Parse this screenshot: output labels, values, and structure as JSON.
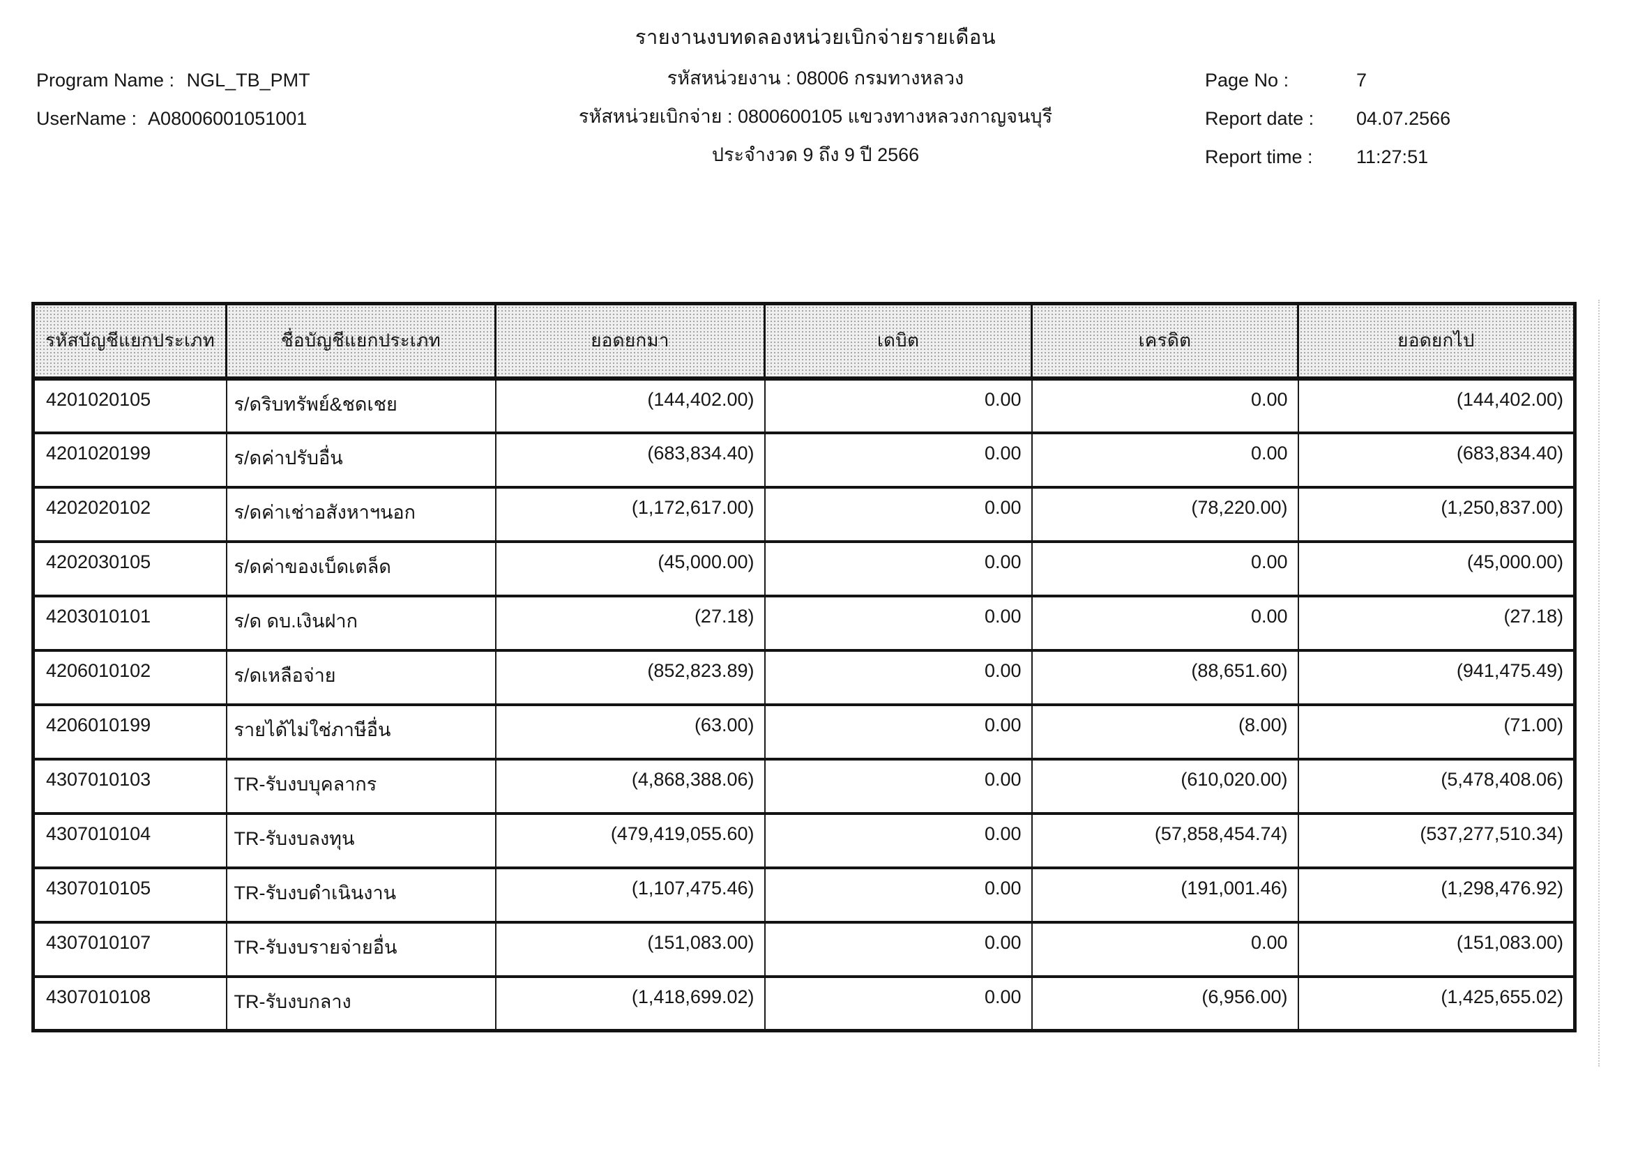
{
  "title": "รายงานงบทดลองหน่วยเบิกจ่ายรายเดือน",
  "meta": {
    "program_name_label": "Program Name :",
    "program_name_value": "NGL_TB_PMT",
    "username_label": "UserName :",
    "username_value": "A08006001051001",
    "agency_line": "รหัสหน่วยงาน : 08006 กรมทางหลวง",
    "disbursement_unit_line": "รหัสหน่วยเบิกจ่าย : 0800600105 แขวงทางหลวงกาญจนบุรี",
    "period_line": "ประจำงวด 9 ถึง 9 ปี 2566",
    "page_no_label": "Page No :",
    "page_no_value": "7",
    "report_date_label": "Report date :",
    "report_date_value": "04.07.2566",
    "report_time_label": "Report time :",
    "report_time_value": "11:27:51"
  },
  "table": {
    "headers": [
      "รหัสบัญชีแยกประเภท",
      "ชื่อบัญชีแยกประเภท",
      "ยอดยกมา",
      "เดบิต",
      "เครดิต",
      "ยอดยกไป"
    ],
    "rows": [
      [
        "4201020105",
        "ร/ดริบทรัพย์&ชดเชย",
        "(144,402.00)",
        "0.00",
        "0.00",
        "(144,402.00)"
      ],
      [
        "4201020199",
        "ร/ดค่าปรับอื่น",
        "(683,834.40)",
        "0.00",
        "0.00",
        "(683,834.40)"
      ],
      [
        "4202020102",
        "ร/ดค่าเช่าอสังหาฯนอก",
        "(1,172,617.00)",
        "0.00",
        "(78,220.00)",
        "(1,250,837.00)"
      ],
      [
        "4202030105",
        "ร/ดค่าของเบ็ดเตล็ด",
        "(45,000.00)",
        "0.00",
        "0.00",
        "(45,000.00)"
      ],
      [
        "4203010101",
        "ร/ด ดบ.เงินฝาก",
        "(27.18)",
        "0.00",
        "0.00",
        "(27.18)"
      ],
      [
        "4206010102",
        "ร/ดเหลือจ่าย",
        "(852,823.89)",
        "0.00",
        "(88,651.60)",
        "(941,475.49)"
      ],
      [
        "4206010199",
        "รายได้ไม่ใช่ภาษีอื่น",
        "(63.00)",
        "0.00",
        "(8.00)",
        "(71.00)"
      ],
      [
        "4307010103",
        "TR-รับงบบุคลากร",
        "(4,868,388.06)",
        "0.00",
        "(610,020.00)",
        "(5,478,408.06)"
      ],
      [
        "4307010104",
        "TR-รับงบลงทุน",
        "(479,419,055.60)",
        "0.00",
        "(57,858,454.74)",
        "(537,277,510.34)"
      ],
      [
        "4307010105",
        "TR-รับงบดำเนินงาน",
        "(1,107,475.46)",
        "0.00",
        "(191,001.46)",
        "(1,298,476.92)"
      ],
      [
        "4307010107",
        "TR-รับงบรายจ่ายอื่น",
        "(151,083.00)",
        "0.00",
        "0.00",
        "(151,083.00)"
      ],
      [
        "4307010108",
        "TR-รับงบกลาง",
        "(1,418,699.02)",
        "0.00",
        "(6,956.00)",
        "(1,425,655.02)"
      ]
    ]
  },
  "colors": {
    "ink": "#161616",
    "header_bg": "#efefef",
    "page_bg": "#ffffff"
  }
}
